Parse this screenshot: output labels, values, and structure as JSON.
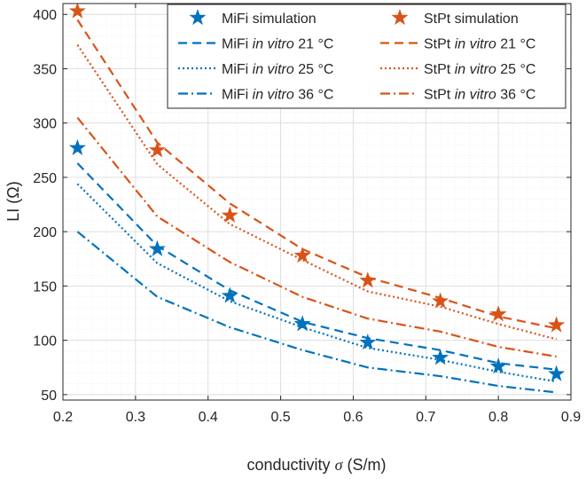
{
  "chart_data": {
    "type": "line",
    "title": "",
    "xlabel": "conductivity",
    "xlabel_symbol": "σ",
    "xlabel_unit": "(S/m)",
    "ylabel": "LI (Ω)",
    "xlim": [
      0.2,
      0.9
    ],
    "ylim": [
      45,
      410
    ],
    "xticks": [
      "0.2",
      "0.3",
      "0.4",
      "0.5",
      "0.6",
      "0.7",
      "0.8",
      "0.9"
    ],
    "yticks": [
      "50",
      "100",
      "150",
      "200",
      "250",
      "300",
      "350",
      "400"
    ],
    "grid": "major and minor",
    "legend_position": "top-right",
    "x": [
      0.22,
      0.33,
      0.43,
      0.53,
      0.62,
      0.72,
      0.8,
      0.88
    ],
    "series": [
      {
        "name": "MiFi simulation",
        "style": "star",
        "color": "#0072BD",
        "values": [
          277,
          184,
          141,
          115,
          98,
          84,
          76,
          69
        ]
      },
      {
        "name": "MiFi in vitro 21 °C",
        "style": "dashed",
        "color": "#0072BD",
        "values": [
          263,
          187,
          146,
          117,
          102,
          91,
          79,
          73
        ]
      },
      {
        "name": "MiFi in vitro 25 °C",
        "style": "dotted",
        "color": "#0072BD",
        "values": [
          244,
          171,
          136,
          112,
          93,
          82,
          71,
          62
        ]
      },
      {
        "name": "MiFi in vitro 36 °C",
        "style": "dashdot",
        "color": "#0072BD",
        "values": [
          200,
          140,
          112,
          91,
          75,
          67,
          58,
          52
        ]
      },
      {
        "name": "StPt simulation",
        "style": "star",
        "color": "#D95319",
        "values": [
          403,
          275,
          215,
          178,
          155,
          136,
          124,
          114
        ]
      },
      {
        "name": "StPt in vitro 21 °C",
        "style": "dashed",
        "color": "#D95319",
        "values": [
          395,
          282,
          226,
          184,
          158,
          139,
          122,
          111
        ]
      },
      {
        "name": "StPt in vitro 25 °C",
        "style": "dotted",
        "color": "#D95319",
        "values": [
          372,
          262,
          207,
          174,
          145,
          131,
          115,
          101
        ]
      },
      {
        "name": "StPt in vitro 36 °C",
        "style": "dashdot",
        "color": "#D95319",
        "values": [
          305,
          214,
          172,
          140,
          120,
          108,
          94,
          85
        ]
      }
    ],
    "legend": [
      {
        "before": "MiFi simulation",
        "italic": "",
        "after": ""
      },
      {
        "before": "StPt simulation",
        "italic": "",
        "after": ""
      },
      {
        "before": "MiFi ",
        "italic": "in vitro",
        "after": " 21 °C"
      },
      {
        "before": "StPt ",
        "italic": "in vitro",
        "after": " 21 °C"
      },
      {
        "before": "MiFi ",
        "italic": "in vitro",
        "after": " 25 °C"
      },
      {
        "before": "StPt ",
        "italic": "in vitro",
        "after": " 25 °C"
      },
      {
        "before": "MiFi ",
        "italic": "in vitro",
        "after": " 36 °C"
      },
      {
        "before": "StPt ",
        "italic": "in vitro",
        "after": " 36 °C"
      }
    ]
  }
}
